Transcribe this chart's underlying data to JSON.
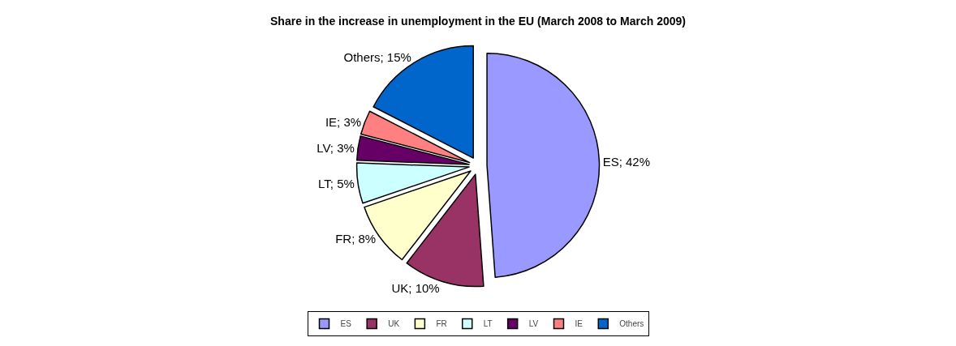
{
  "chart_data": {
    "type": "pie",
    "title": "Share in the increase in unemployment in the EU (March 2008 to March 2009)",
    "categories": [
      "ES",
      "UK",
      "FR",
      "LT",
      "LV",
      "IE",
      "Others"
    ],
    "values": [
      42,
      10,
      8,
      5,
      3,
      3,
      15
    ],
    "value_labels": [
      "ES; 42%",
      "UK; 10%",
      "FR; 8%",
      "LT; 5%",
      "LV; 3%",
      "IE; 3%",
      "Others; 15%"
    ],
    "colors": [
      "#9999ff",
      "#993366",
      "#ffffcc",
      "#ccffff",
      "#660066",
      "#ff8080",
      "#0066cc"
    ],
    "legend": "bottom"
  }
}
